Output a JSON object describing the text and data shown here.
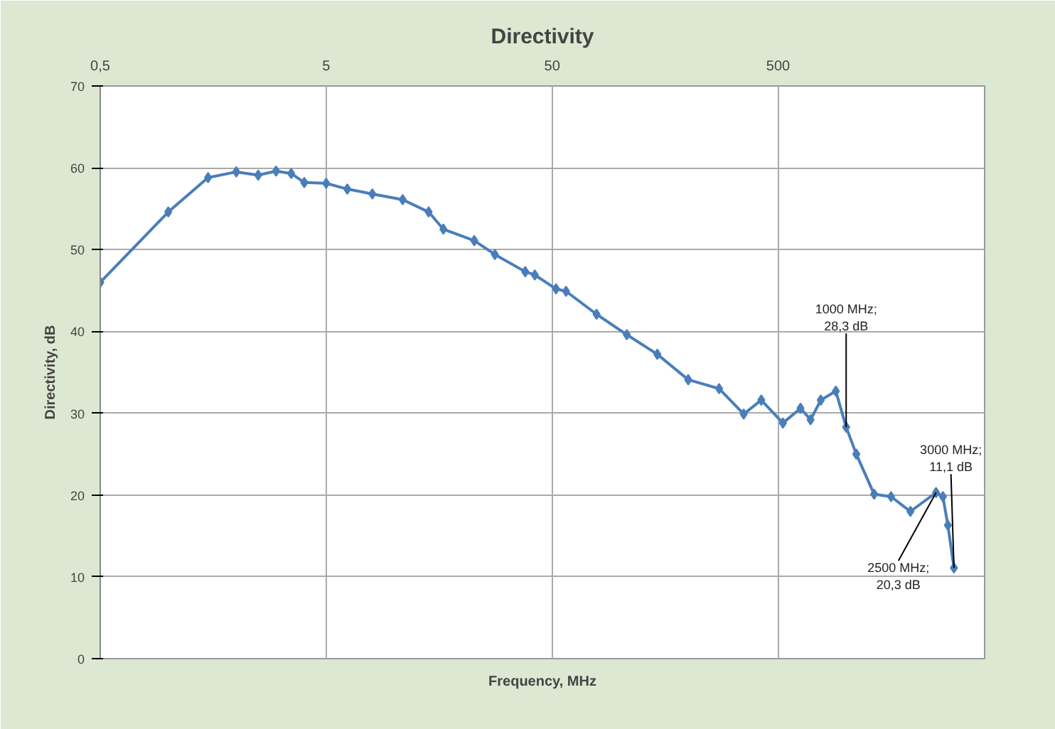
{
  "chart_data": {
    "type": "line",
    "title": "Directivity",
    "xlabel": "Frequency, MHz",
    "ylabel": "Directivity, dB",
    "log": "x",
    "grid": true,
    "marker": "diamond",
    "line_style": "solid",
    "tick_labels": "xy",
    "xlim": [
      0.5,
      4100
    ],
    "ylim": [
      0,
      70
    ],
    "xticks": [
      {
        "value": 0.5,
        "label": "0,5"
      },
      5,
      50,
      500
    ],
    "yticks": [
      0,
      10,
      20,
      30,
      40,
      50,
      60,
      70
    ],
    "series": [
      {
        "color": "#4a7ebb",
        "x": [
          0.5,
          1.0,
          1.5,
          2.0,
          2.5,
          3.0,
          3.5,
          4.0,
          5.0,
          6.2,
          8.0,
          10.9,
          14.2,
          16.5,
          22.6,
          27.9,
          38,
          41.9,
          52,
          57.6,
          78.6,
          107,
          146,
          200,
          274,
          352,
          421,
          525,
          628,
          696,
          772,
          900,
          1000,
          1109,
          1330,
          1580,
          1925,
          2500,
          2680,
          2820,
          3000
        ],
        "values": [
          46.0,
          54.6,
          58.8,
          59.5,
          59.1,
          59.6,
          59.3,
          58.2,
          58.1,
          57.4,
          56.8,
          56.1,
          54.6,
          52.5,
          51.1,
          49.4,
          47.3,
          46.9,
          45.2,
          44.9,
          42.1,
          39.6,
          37.2,
          34.1,
          33.0,
          29.9,
          31.6,
          28.8,
          30.6,
          29.2,
          31.6,
          32.7,
          28.3,
          25.0,
          20.1,
          19.8,
          18.0,
          20.3,
          19.8,
          16.3,
          11.1
        ]
      }
    ],
    "annotations": [
      {
        "text": "1000 MHz;\n28,3 dB",
        "x": 1000,
        "y": 28.3
      },
      {
        "text": "2500 MHz;\n20,3 dB",
        "x": 2500,
        "y": 20.3
      },
      {
        "text": "3000 MHz;\n11,1 dB",
        "x": 3000,
        "y": 11.1
      }
    ]
  }
}
